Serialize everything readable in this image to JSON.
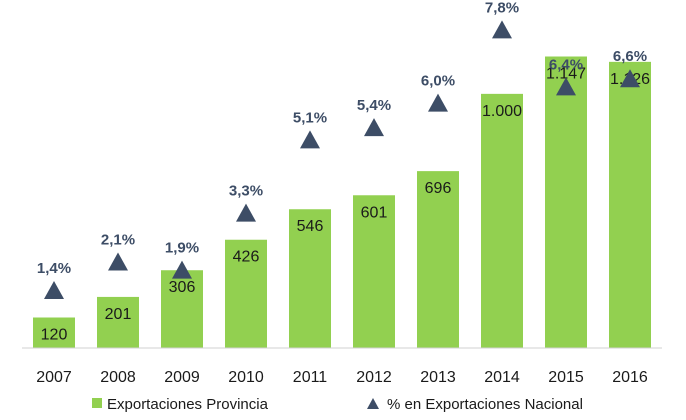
{
  "chart_data": {
    "type": "bar",
    "categories": [
      "2007",
      "2008",
      "2009",
      "2010",
      "2011",
      "2012",
      "2013",
      "2014",
      "2015",
      "2016"
    ],
    "series": [
      {
        "name": "Exportaciones Provincia",
        "kind": "bar",
        "values": [
          120,
          201,
          306,
          426,
          546,
          601,
          696,
          1000,
          1147,
          1126
        ],
        "labels": [
          "120",
          "201",
          "306",
          "426",
          "546",
          "601",
          "696",
          "1.000",
          "1.147",
          "1.126"
        ],
        "color": "#92d050"
      },
      {
        "name": "% en Exportaciones Nacional",
        "kind": "marker-triangle",
        "values": [
          1.4,
          2.1,
          1.9,
          3.3,
          5.1,
          5.4,
          6.0,
          7.8,
          6.4,
          6.6
        ],
        "labels": [
          "1,4%",
          "2,1%",
          "1,9%",
          "3,3%",
          "5,1%",
          "5,4%",
          "6,0%",
          "7,8%",
          "6,4%",
          "6,6%"
        ],
        "color": "#3d4d66"
      }
    ],
    "ylim_bars": [
      0,
      1330
    ],
    "ylim_pct": [
      0,
      8.3
    ],
    "legend_position": "bottom",
    "grid": false
  }
}
